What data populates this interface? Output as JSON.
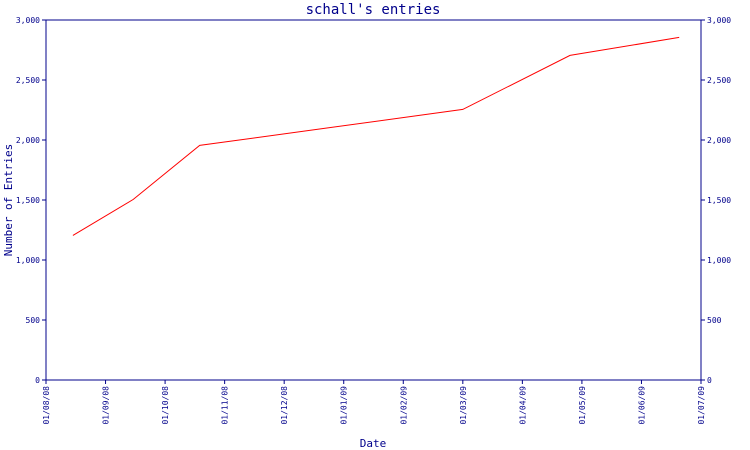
{
  "chart_data": {
    "type": "line",
    "title": "schall's entries",
    "xlabel": "Date",
    "ylabel": "Number of Entries",
    "x_ticks": [
      "01/08/08",
      "01/09/08",
      "01/10/08",
      "01/11/08",
      "01/12/08",
      "01/01/09",
      "01/02/09",
      "01/03/09",
      "01/04/09",
      "01/05/09",
      "01/06/09",
      "01/07/09"
    ],
    "ylim": [
      0,
      3000
    ],
    "y_ticks": [
      0,
      500,
      1000,
      1500,
      2000,
      2500,
      3000
    ],
    "y_tick_labels": [
      "0",
      "500",
      "1,000",
      "1,500",
      "2,000",
      "2,500",
      "3,000"
    ],
    "x": [
      "2008-08-15",
      "2008-09-15",
      "2008-10-19",
      "2009-03-01",
      "2009-04-25",
      "2009-06-20"
    ],
    "y": [
      1205,
      1505,
      1955,
      2255,
      2705,
      2855
    ],
    "grid": false,
    "secondary_y_axis": true,
    "colors": {
      "line": "#ff0000",
      "axis": "#00008b",
      "text": "#00008b"
    }
  }
}
